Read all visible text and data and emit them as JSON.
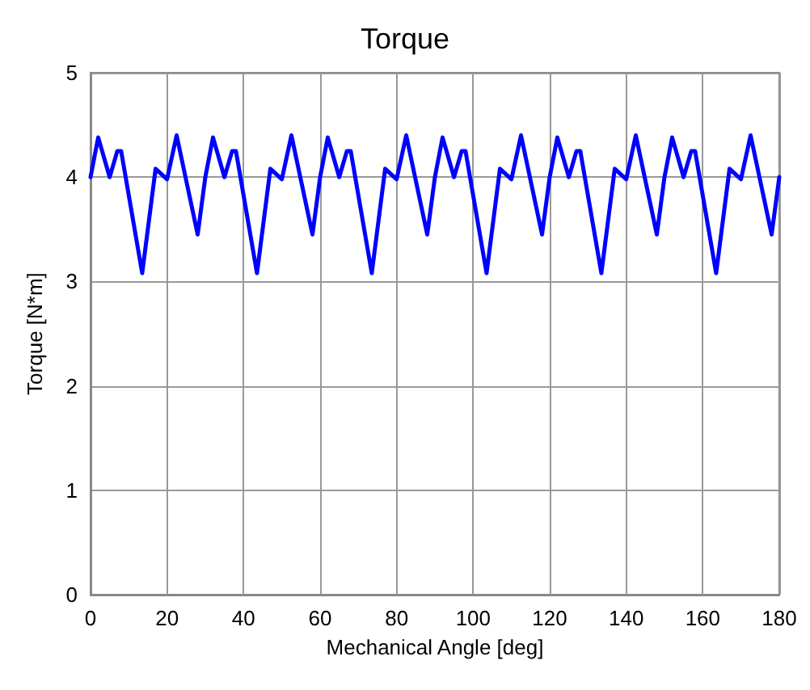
{
  "chart_data": {
    "type": "line",
    "title": "Torque",
    "xlabel": "Mechanical Angle [deg]",
    "ylabel": "Torque [N*m]",
    "x": [
      0,
      2,
      5,
      7,
      8,
      13.5,
      17,
      20,
      22.5,
      28,
      30,
      32,
      35,
      37,
      38,
      43.5,
      47,
      50,
      52.5,
      58,
      60,
      62,
      65,
      67,
      68,
      73.5,
      77,
      80,
      82.5,
      88,
      90,
      92,
      95,
      97,
      98,
      103.5,
      107,
      110,
      112.5,
      118,
      120,
      122,
      125,
      127,
      128,
      133.5,
      137,
      140,
      142.5,
      148,
      150,
      152,
      155,
      157,
      158,
      163.5,
      167,
      170,
      172.5,
      178,
      180
    ],
    "series": [
      {
        "color": "#0000ff",
        "values": [
          4.0,
          4.38,
          4.0,
          4.25,
          4.25,
          3.08,
          4.08,
          3.98,
          4.4,
          3.45,
          4.0,
          4.38,
          4.0,
          4.25,
          4.25,
          3.08,
          4.08,
          3.98,
          4.4,
          3.45,
          4.0,
          4.38,
          4.0,
          4.25,
          4.25,
          3.08,
          4.08,
          3.98,
          4.4,
          3.45,
          4.0,
          4.38,
          4.0,
          4.25,
          4.25,
          3.08,
          4.08,
          3.98,
          4.4,
          3.45,
          4.0,
          4.38,
          4.0,
          4.25,
          4.25,
          3.08,
          4.08,
          3.98,
          4.4,
          3.45,
          4.0,
          4.38,
          4.0,
          4.25,
          4.25,
          3.08,
          4.08,
          3.98,
          4.4,
          3.45,
          4.0
        ]
      }
    ],
    "xlim": [
      0,
      180
    ],
    "xticks": [
      0,
      20,
      40,
      60,
      80,
      100,
      120,
      140,
      160,
      180
    ],
    "ylim": [
      0,
      5
    ],
    "yticks": [
      0,
      1,
      2,
      3,
      4,
      5
    ],
    "grid": true,
    "marker": "none",
    "line_style": "solid"
  }
}
